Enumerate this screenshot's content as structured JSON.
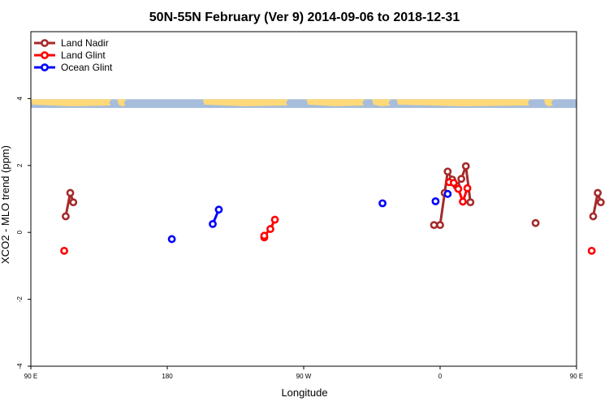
{
  "chart_data": {
    "type": "line",
    "title": "50N-55N February (Ver 9)   2014-09-06 to 2018-12-31",
    "xlabel": "Longitude",
    "ylabel": "XCO2 - MLO trend (ppm)",
    "xlim": [
      90,
      450
    ],
    "ylim": [
      -4,
      6
    ],
    "x_ticks": [
      {
        "value": 90,
        "label": "90 E"
      },
      {
        "value": 180,
        "label": "180"
      },
      {
        "value": 270,
        "label": "90 W"
      },
      {
        "value": 360,
        "label": "0"
      },
      {
        "value": 450,
        "label": "90 E"
      },
      {
        "value": 540,
        "label": "180"
      }
    ],
    "y_ticks": [
      {
        "value": -4,
        "label": "-4"
      },
      {
        "value": -2,
        "label": "-2"
      },
      {
        "value": 0,
        "label": "0"
      },
      {
        "value": 2,
        "label": "2"
      },
      {
        "value": 4,
        "label": "4"
      }
    ],
    "legend": {
      "position": "top-left"
    },
    "map_strip": {
      "y_range": [
        3.72,
        3.98
      ],
      "ocean_color": "#a6bddb",
      "land_color": "#ffd978"
    },
    "series": [
      {
        "name": "Land Nadir",
        "color": "#a52a2a",
        "segments": [
          [
            [
              113,
              0.48
            ],
            [
              116,
              1.18
            ],
            [
              118,
              0.9
            ]
          ],
          [
            [
              356,
              0.22
            ],
            [
              360,
              0.22
            ],
            [
              363,
              1.18
            ],
            [
              365,
              1.82
            ],
            [
              368,
              1.58
            ],
            [
              371,
              1.38
            ],
            [
              374,
              1.6
            ],
            [
              377,
              1.98
            ],
            [
              380,
              0.9
            ]
          ],
          [
            [
              423,
              0.28
            ]
          ],
          [
            [
              461,
              0.48
            ],
            [
              464,
              1.18
            ],
            [
              466,
              0.9
            ]
          ]
        ]
      },
      {
        "name": "Land Glint",
        "color": "#ff0000",
        "segments": [
          [
            [
              112,
              -0.55
            ]
          ],
          [
            [
              244,
              -0.15
            ],
            [
              244,
              -0.1
            ],
            [
              248,
              0.1
            ],
            [
              251,
              0.38
            ]
          ],
          [
            [
              366,
              1.5
            ],
            [
              369,
              1.48
            ],
            [
              372,
              1.3
            ],
            [
              375,
              0.92
            ],
            [
              378,
              1.32
            ]
          ],
          [
            [
              460,
              -0.55
            ]
          ]
        ]
      },
      {
        "name": "Ocean Glint",
        "color": "#0000ff",
        "segments": [
          [
            [
              183,
              -0.2
            ]
          ],
          [
            [
              210,
              0.25
            ],
            [
              214,
              0.68
            ]
          ],
          [
            [
              322,
              0.87
            ]
          ],
          [
            [
              357,
              0.93
            ]
          ],
          [
            [
              365,
              1.15
            ]
          ]
        ]
      }
    ]
  }
}
